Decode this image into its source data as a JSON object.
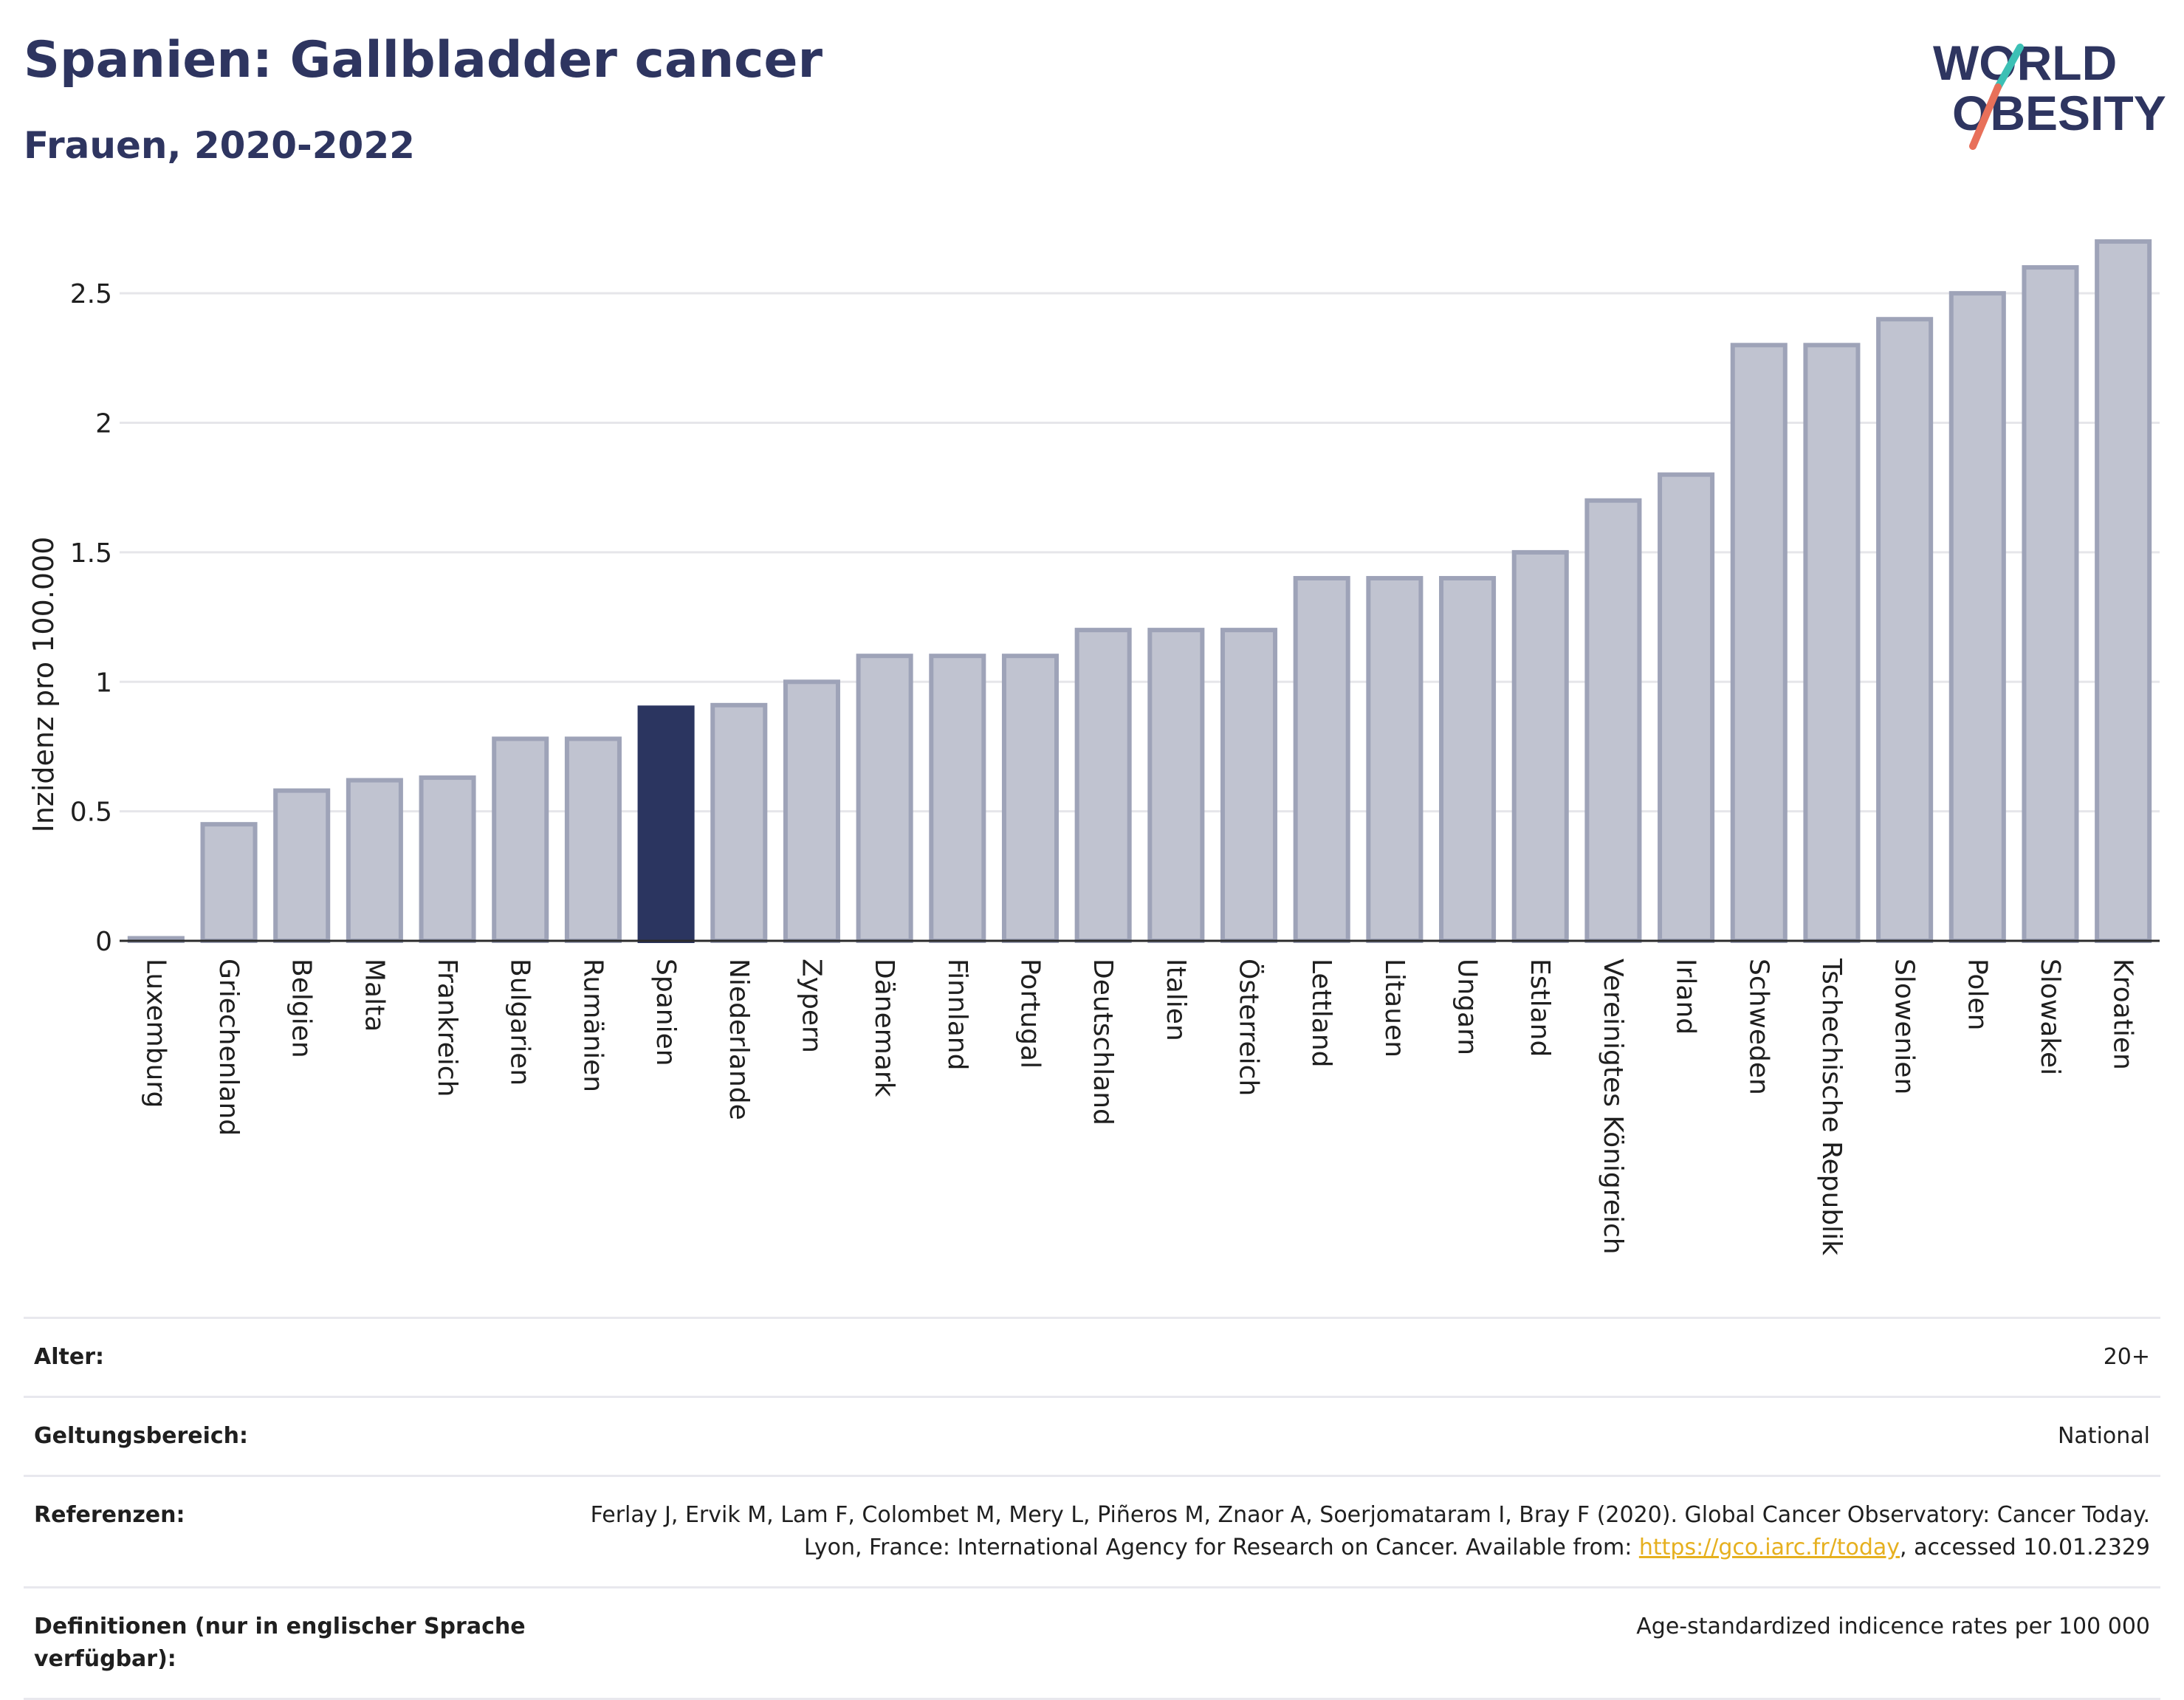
{
  "header": {
    "title": "Spanien: Gallbladder cancer",
    "subtitle": "Frauen, 2020-2022"
  },
  "logo": {
    "line1": "WORLD",
    "line2": "OBESITY",
    "accent_colors": [
      "#3cc0b5",
      "#e8705a"
    ],
    "text_color": "#2e3560"
  },
  "colors": {
    "highlight": "#2b3560",
    "bar": "#c0c3d0",
    "bar_stroke": "#9ea3b8",
    "grid": "#e6e6ea",
    "axis": "#2b2b2b"
  },
  "chart_data": {
    "type": "bar",
    "ylabel": "Inzidenz pro 100.000",
    "xlabel": "",
    "ylim": [
      0,
      2.72
    ],
    "yticks": [
      0,
      0.5,
      1,
      1.5,
      2,
      2.5
    ],
    "ytick_labels": [
      "0",
      "0.5",
      "1",
      "1.5",
      "2",
      "2.5"
    ],
    "grid": true,
    "highlight": "Spanien",
    "categories": [
      "Luxemburg",
      "Griechenland",
      "Belgien",
      "Malta",
      "Frankreich",
      "Bulgarien",
      "Rumänien",
      "Spanien",
      "Niederlande",
      "Zypern",
      "Dänemark",
      "Finnland",
      "Portugal",
      "Deutschland",
      "Italien",
      "Österreich",
      "Lettland",
      "Litauen",
      "Ungarn",
      "Estland",
      "Vereinigtes Königreich",
      "Irland",
      "Schweden",
      "Tschechische Republik",
      "Slowenien",
      "Polen",
      "Slowakei",
      "Kroatien"
    ],
    "values": [
      0.01,
      0.45,
      0.58,
      0.62,
      0.63,
      0.78,
      0.78,
      0.9,
      0.91,
      1.0,
      1.1,
      1.1,
      1.1,
      1.2,
      1.2,
      1.2,
      1.4,
      1.4,
      1.4,
      1.5,
      1.7,
      1.8,
      2.3,
      2.3,
      2.4,
      2.5,
      2.6,
      2.7
    ]
  },
  "info": {
    "age_label": "Alter:",
    "age_value": "20+",
    "scope_label": "Geltungsbereich:",
    "scope_value": "National",
    "ref_label": "Referenzen:",
    "ref_text_1": "Ferlay J, Ervik M, Lam F, Colombet M, Mery L, Piñeros M, Znaor A, Soerjomataram I, Bray F (2020). Global Cancer Observatory: Cancer Today. Lyon, France: International Agency for Research on Cancer. Available from: ",
    "ref_link": "https://gco.iarc.fr/today",
    "ref_text_2": ", accessed 10.01.2329",
    "def_label": "Definitionen (nur in englischer Sprache verfügbar):",
    "def_value": "Age-standardized indicence rates per 100 000"
  }
}
